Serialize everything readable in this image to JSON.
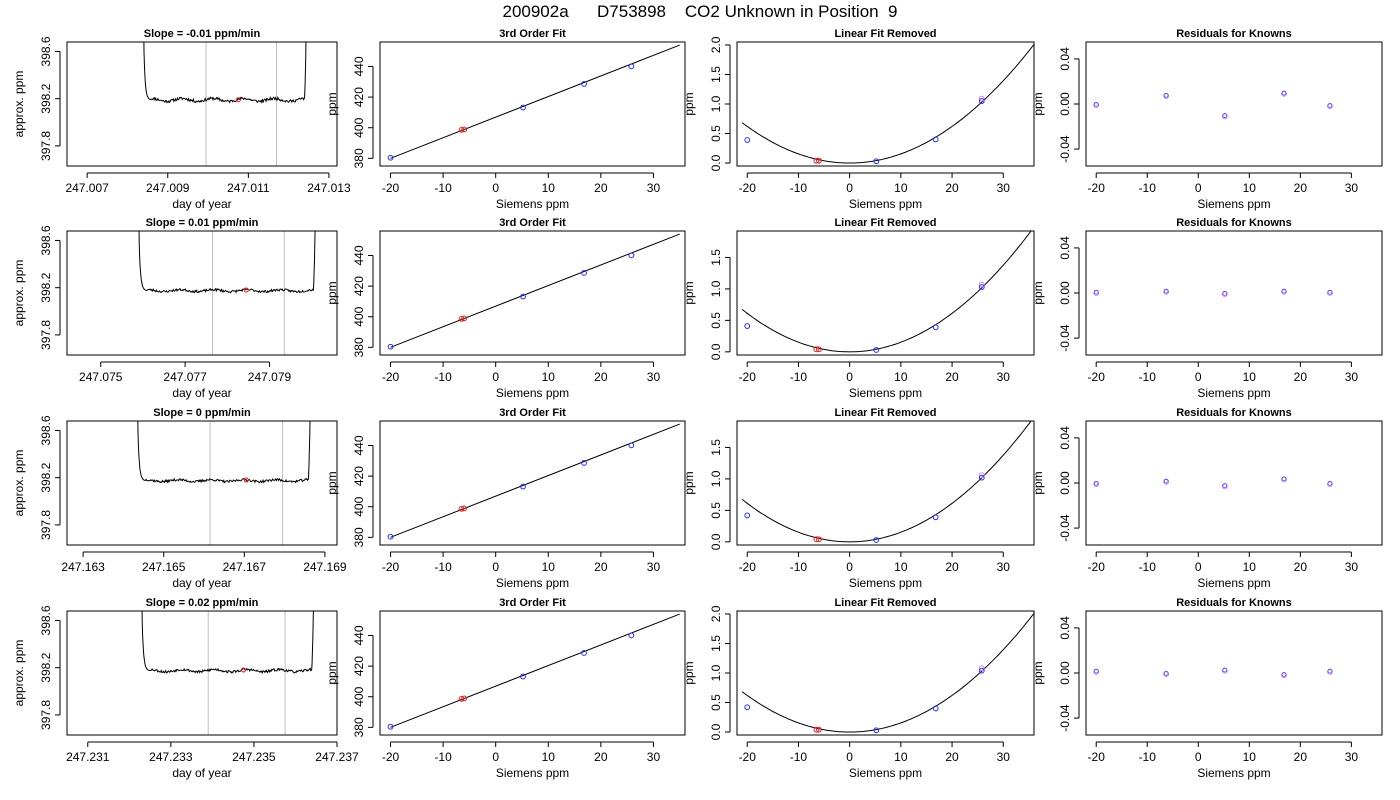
{
  "title": "200902a      D753898    CO2 Unknown in Position  9",
  "chart_data": [
    {
      "type": "line",
      "panel": "trace",
      "title": "Slope =  -0.01  ppm/min",
      "xlabel": "day of year",
      "ylabel": "approx. ppm",
      "xlim": [
        247.0065,
        247.0132
      ],
      "ylim": [
        397.63,
        398.68
      ],
      "xticks": [
        "247.007",
        "247.009",
        "247.011",
        "247.013"
      ],
      "yticks": [
        "397.8",
        "398.2",
        "398.6"
      ],
      "window": [
        247.00995,
        247.0117
      ],
      "marker": {
        "x": 247.01075,
        "y": 398.19
      },
      "trace": {
        "start": 247.0084,
        "end": 247.01245,
        "level": 398.19,
        "noise": 0.012,
        "wave": 0.012,
        "seed": 11
      }
    },
    {
      "type": "scatter",
      "panel": "fit",
      "title": "3rd Order Fit",
      "xlabel": "Siemens ppm",
      "ylabel": "ppm",
      "xlim": [
        -22,
        36
      ],
      "ylim": [
        375,
        456
      ],
      "xticks": [
        "-20",
        "-10",
        "0",
        "10",
        "20",
        "30"
      ],
      "yticks": [
        "380",
        "400",
        "420",
        "440"
      ],
      "points_x": [
        -20,
        -6.5,
        -6,
        5.2,
        16.8,
        25.8
      ],
      "points_y": [
        380.4,
        398.6,
        398.9,
        413.2,
        428.6,
        440.1
      ],
      "line": [
        [
          -20,
          380
        ],
        [
          35,
          454
        ]
      ]
    },
    {
      "type": "scatter",
      "panel": "lin",
      "title": "Linear Fit Removed",
      "xlabel": "Siemens ppm",
      "ylabel": "ppm",
      "xlim": [
        -22,
        36
      ],
      "ylim": [
        -0.05,
        2.05
      ],
      "xticks": [
        "-20",
        "-10",
        "0",
        "10",
        "20",
        "30"
      ],
      "yticks": [
        "0.0",
        "0.5",
        "1.0",
        "1.5",
        "2.0"
      ],
      "points_x": [
        -20,
        -6.5,
        -6,
        5.2,
        16.8,
        25.8
      ],
      "points_y": [
        0.39,
        0.04,
        0.04,
        0.03,
        0.4,
        1.05
      ],
      "curve_a": 0.00155
    },
    {
      "type": "scatter",
      "panel": "res",
      "title": "Residuals for Knowns",
      "xlabel": "Siemens ppm",
      "ylabel": "ppm",
      "xlim": [
        -22,
        36
      ],
      "ylim": [
        -0.055,
        0.055
      ],
      "xticks": [
        "-20",
        "-10",
        "0",
        "10",
        "20",
        "30"
      ],
      "yticks": [
        "-0.04",
        "0.00",
        "0.04"
      ],
      "points_x": [
        -20,
        -6.3,
        5.2,
        16.8,
        25.8
      ],
      "points_y": [
        -0.001,
        0.007,
        -0.011,
        0.009,
        -0.002
      ]
    },
    {
      "type": "line",
      "panel": "trace",
      "title": "Slope =  0.01  ppm/min",
      "xlabel": "day of year",
      "ylabel": "approx. ppm",
      "xlim": [
        247.0742,
        247.0806
      ],
      "ylim": [
        397.63,
        398.68
      ],
      "xticks": [
        "247.075",
        "247.077",
        "247.079"
      ],
      "yticks": [
        "397.8",
        "398.2",
        "398.6"
      ],
      "window": [
        247.07765,
        247.07935
      ],
      "marker": {
        "x": 247.07845,
        "y": 398.18
      },
      "trace": {
        "start": 247.0759,
        "end": 247.0801,
        "level": 398.175,
        "noise": 0.01,
        "wave": 0.008,
        "seed": 23
      }
    },
    {
      "type": "scatter",
      "panel": "fit",
      "title": "3rd Order Fit",
      "xlabel": "Siemens ppm",
      "ylabel": "ppm",
      "xlim": [
        -22,
        36
      ],
      "ylim": [
        375,
        456
      ],
      "xticks": [
        "-20",
        "-10",
        "0",
        "10",
        "20",
        "30"
      ],
      "yticks": [
        "380",
        "400",
        "420",
        "440"
      ],
      "points_x": [
        -20,
        -6.5,
        -6,
        5.2,
        16.8,
        25.8
      ],
      "points_y": [
        380.4,
        398.6,
        398.9,
        413.2,
        428.6,
        440.1
      ],
      "line": [
        [
          -20,
          380
        ],
        [
          35,
          454
        ]
      ]
    },
    {
      "type": "scatter",
      "panel": "lin",
      "title": "Linear Fit Removed",
      "xlabel": "Siemens ppm",
      "ylabel": "ppm",
      "xlim": [
        -22,
        36
      ],
      "ylim": [
        -0.05,
        1.92
      ],
      "xticks": [
        "-20",
        "-10",
        "0",
        "10",
        "20",
        "30"
      ],
      "yticks": [
        "0.0",
        "0.5",
        "1.0",
        "1.5"
      ],
      "points_x": [
        -20,
        -6.5,
        -6,
        5.2,
        16.8,
        25.8
      ],
      "points_y": [
        0.41,
        0.04,
        0.04,
        0.03,
        0.39,
        1.03
      ],
      "curve_a": 0.00153
    },
    {
      "type": "scatter",
      "panel": "res",
      "title": "Residuals for Knowns",
      "xlabel": "Siemens ppm",
      "ylabel": "ppm",
      "xlim": [
        -22,
        36
      ],
      "ylim": [
        -0.055,
        0.055
      ],
      "xticks": [
        "-20",
        "-10",
        "0",
        "10",
        "20",
        "30"
      ],
      "yticks": [
        "-0.04",
        "0.00",
        "0.04"
      ],
      "points_x": [
        -20,
        -6.3,
        5.2,
        16.8,
        25.8
      ],
      "points_y": [
        0.0,
        0.001,
        -0.001,
        0.001,
        0.0
      ]
    },
    {
      "type": "line",
      "panel": "trace",
      "title": "Slope =  0  ppm/min",
      "xlabel": "day of year",
      "ylabel": "approx. ppm",
      "xlim": [
        247.1626,
        247.1693
      ],
      "ylim": [
        397.63,
        398.68
      ],
      "xticks": [
        "247.163",
        "247.165",
        "247.167",
        "247.169"
      ],
      "yticks": [
        "397.8",
        "398.2",
        "398.6"
      ],
      "window": [
        247.16615,
        247.16795
      ],
      "marker": {
        "x": 247.16705,
        "y": 398.18
      },
      "trace": {
        "start": 247.16435,
        "end": 247.16865,
        "level": 398.175,
        "noise": 0.01,
        "wave": 0.008,
        "seed": 37
      }
    },
    {
      "type": "scatter",
      "panel": "fit",
      "title": "3rd Order Fit",
      "xlabel": "Siemens ppm",
      "ylabel": "ppm",
      "xlim": [
        -22,
        36
      ],
      "ylim": [
        375,
        456
      ],
      "xticks": [
        "-20",
        "-10",
        "0",
        "10",
        "20",
        "30"
      ],
      "yticks": [
        "380",
        "400",
        "420",
        "440"
      ],
      "points_x": [
        -20,
        -6.5,
        -6,
        5.2,
        16.8,
        25.8
      ],
      "points_y": [
        380.4,
        398.6,
        398.9,
        413.2,
        428.6,
        440.1
      ],
      "line": [
        [
          -20,
          380
        ],
        [
          35,
          454
        ]
      ]
    },
    {
      "type": "scatter",
      "panel": "lin",
      "title": "Linear Fit Removed",
      "xlabel": "Siemens ppm",
      "ylabel": "ppm",
      "xlim": [
        -22,
        36
      ],
      "ylim": [
        -0.05,
        1.92
      ],
      "xticks": [
        "-20",
        "-10",
        "0",
        "10",
        "20",
        "30"
      ],
      "yticks": [
        "0.0",
        "0.5",
        "1.0",
        "1.5"
      ],
      "points_x": [
        -20,
        -6.5,
        -6,
        5.2,
        16.8,
        25.8
      ],
      "points_y": [
        0.42,
        0.04,
        0.04,
        0.03,
        0.39,
        1.02
      ],
      "curve_a": 0.00153
    },
    {
      "type": "scatter",
      "panel": "res",
      "title": "Residuals for Knowns",
      "xlabel": "Siemens ppm",
      "ylabel": "ppm",
      "xlim": [
        -22,
        36
      ],
      "ylim": [
        -0.055,
        0.055
      ],
      "xticks": [
        "-20",
        "-10",
        "0",
        "10",
        "20",
        "30"
      ],
      "yticks": [
        "-0.04",
        "0.00",
        "0.04"
      ],
      "points_x": [
        -20,
        -6.3,
        5.2,
        16.8,
        25.8
      ],
      "points_y": [
        -0.001,
        0.001,
        -0.003,
        0.003,
        -0.001
      ]
    },
    {
      "type": "line",
      "panel": "trace",
      "title": "Slope =  0.02  ppm/min",
      "xlabel": "day of year",
      "ylabel": "approx. ppm",
      "xlim": [
        247.2305,
        247.237
      ],
      "ylim": [
        397.63,
        398.68
      ],
      "xticks": [
        "247.231",
        "247.233",
        "247.235",
        "247.237"
      ],
      "yticks": [
        "397.8",
        "398.2",
        "398.6"
      ],
      "window": [
        247.2339,
        247.23575
      ],
      "marker": {
        "x": 247.23475,
        "y": 398.18
      },
      "trace": {
        "start": 247.2323,
        "end": 247.23645,
        "level": 398.175,
        "noise": 0.011,
        "wave": 0.01,
        "seed": 53
      }
    },
    {
      "type": "scatter",
      "panel": "fit",
      "title": "3rd Order Fit",
      "xlabel": "Siemens ppm",
      "ylabel": "ppm",
      "xlim": [
        -22,
        36
      ],
      "ylim": [
        375,
        456
      ],
      "xticks": [
        "-20",
        "-10",
        "0",
        "10",
        "20",
        "30"
      ],
      "yticks": [
        "380",
        "400",
        "420",
        "440"
      ],
      "points_x": [
        -20,
        -6.5,
        -6,
        5.2,
        16.8,
        25.8
      ],
      "points_y": [
        380.4,
        398.6,
        398.9,
        413.2,
        428.6,
        440.1
      ],
      "line": [
        [
          -20,
          380
        ],
        [
          35,
          454
        ]
      ]
    },
    {
      "type": "scatter",
      "panel": "lin",
      "title": "Linear Fit Removed",
      "xlabel": "Siemens ppm",
      "ylabel": "ppm",
      "xlim": [
        -22,
        36
      ],
      "ylim": [
        -0.05,
        2.05
      ],
      "xticks": [
        "-20",
        "-10",
        "0",
        "10",
        "20",
        "30"
      ],
      "yticks": [
        "0.0",
        "0.5",
        "1.0",
        "1.5",
        "2.0"
      ],
      "points_x": [
        -20,
        -6.5,
        -6,
        5.2,
        16.8,
        25.8
      ],
      "points_y": [
        0.42,
        0.04,
        0.04,
        0.03,
        0.4,
        1.04
      ],
      "curve_a": 0.00155
    },
    {
      "type": "scatter",
      "panel": "res",
      "title": "Residuals for Knowns",
      "xlabel": "Siemens ppm",
      "ylabel": "ppm",
      "xlim": [
        -22,
        36
      ],
      "ylim": [
        -0.055,
        0.055
      ],
      "xticks": [
        "-20",
        "-10",
        "0",
        "10",
        "20",
        "30"
      ],
      "yticks": [
        "-0.04",
        "0.00",
        "0.04"
      ],
      "points_x": [
        -20,
        -6.3,
        5.2,
        16.8,
        25.8
      ],
      "points_y": [
        0.001,
        -0.001,
        0.002,
        -0.002,
        0.001
      ]
    }
  ],
  "colors": {
    "known_point": "#2b2bff",
    "unknown_point": "#e02020",
    "alt_point": "#d080ff",
    "window_line": "#bdbdbd",
    "trace": "#000000"
  }
}
